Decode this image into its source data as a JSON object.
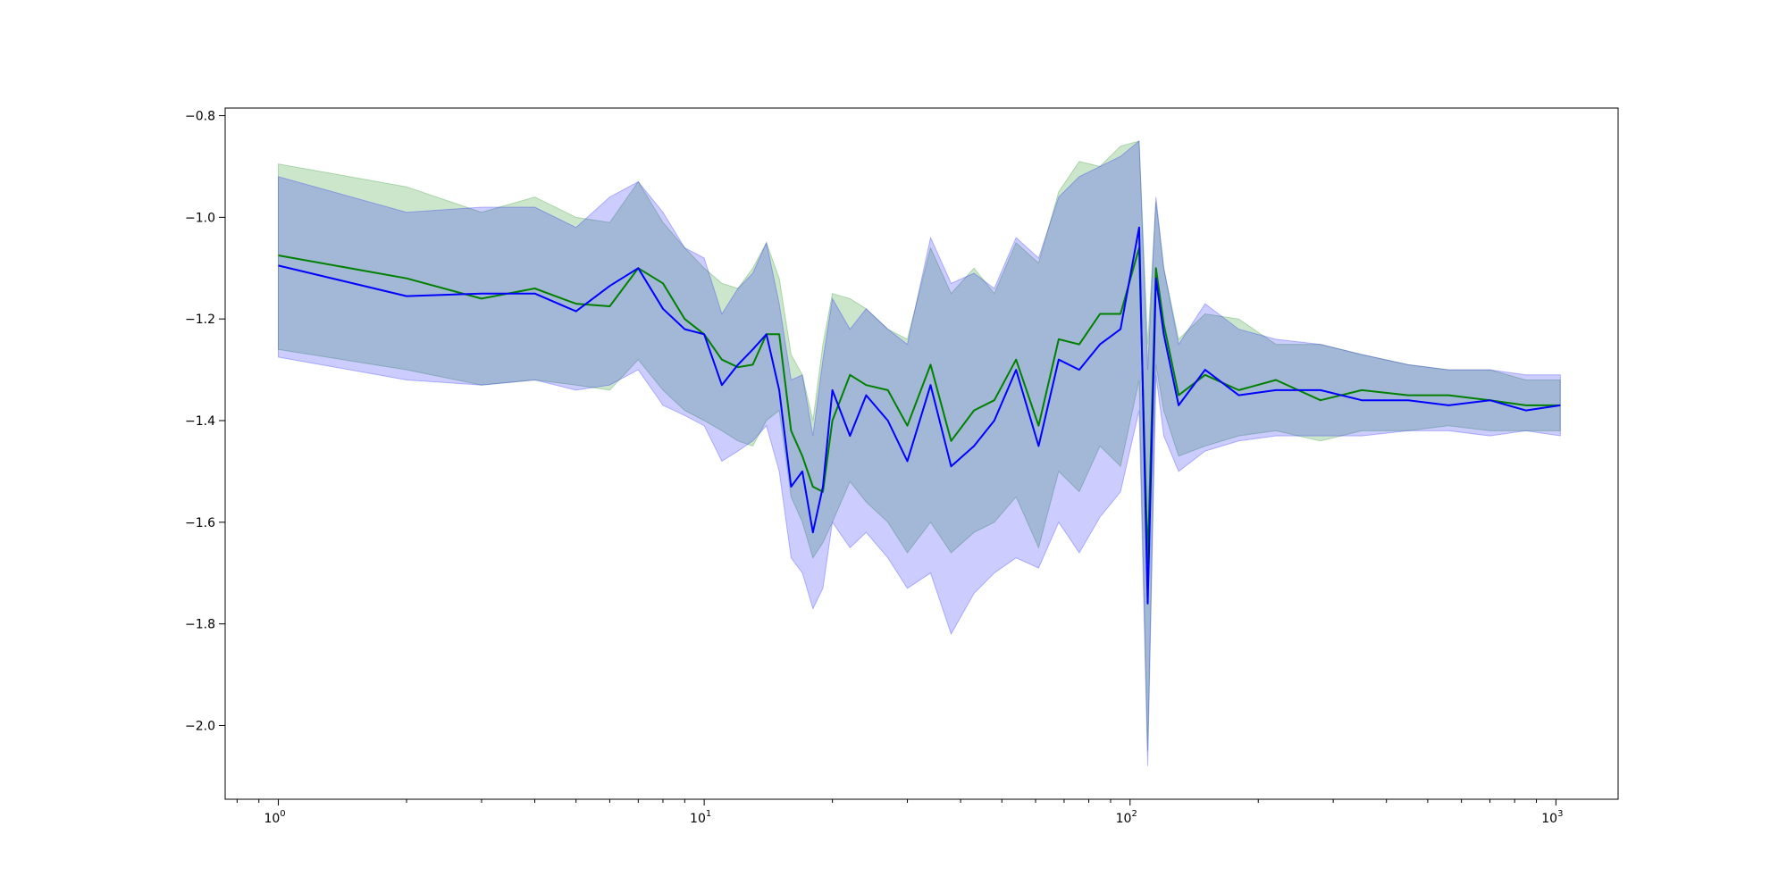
{
  "chart_data": {
    "type": "line",
    "title": "",
    "xlabel": "",
    "ylabel": "",
    "x_scale": "log",
    "xlim": [
      0.75,
      1400
    ],
    "ylim": [
      -2.145,
      -0.785
    ],
    "grid": false,
    "legend": "none",
    "x_ticks": [
      {
        "value": 1,
        "base": "10",
        "exp": "0"
      },
      {
        "value": 10,
        "base": "10",
        "exp": "1"
      },
      {
        "value": 100,
        "base": "10",
        "exp": "2"
      },
      {
        "value": 1000,
        "base": "10",
        "exp": "3"
      }
    ],
    "y_ticks": [
      {
        "value": -0.8,
        "label": "−0.8"
      },
      {
        "value": -1.0,
        "label": "−1.0"
      },
      {
        "value": -1.2,
        "label": "−1.2"
      },
      {
        "value": -1.4,
        "label": "−1.4"
      },
      {
        "value": -1.6,
        "label": "−1.6"
      },
      {
        "value": -1.8,
        "label": "−1.8"
      },
      {
        "value": -2.0,
        "label": "−2.0"
      }
    ],
    "series": [
      {
        "color": "#008000",
        "band_color": "#008000",
        "band_opacity": 0.2,
        "x": [
          1,
          2,
          3,
          4,
          5,
          6,
          7,
          8,
          9,
          10,
          11,
          12,
          13,
          14,
          15,
          16,
          17,
          18,
          19,
          20,
          22,
          24,
          27,
          30,
          34,
          38,
          43,
          48,
          54,
          61,
          68,
          76,
          85,
          95,
          105,
          110,
          115,
          120,
          130,
          150,
          180,
          220,
          280,
          350,
          450,
          560,
          700,
          850,
          1024
        ],
        "y": [
          -1.075,
          -1.12,
          -1.16,
          -1.14,
          -1.17,
          -1.175,
          -1.1,
          -1.13,
          -1.2,
          -1.23,
          -1.28,
          -1.295,
          -1.29,
          -1.23,
          -1.23,
          -1.42,
          -1.47,
          -1.53,
          -1.54,
          -1.4,
          -1.31,
          -1.33,
          -1.34,
          -1.41,
          -1.29,
          -1.44,
          -1.38,
          -1.36,
          -1.28,
          -1.41,
          -1.24,
          -1.25,
          -1.19,
          -1.19,
          -1.06,
          -1.68,
          -1.1,
          -1.21,
          -1.35,
          -1.31,
          -1.34,
          -1.32,
          -1.36,
          -1.34,
          -1.35,
          -1.35,
          -1.36,
          -1.37,
          -1.37
        ],
        "upper": [
          -0.895,
          -0.94,
          -0.99,
          -0.96,
          -1.0,
          -1.01,
          -0.93,
          -1.01,
          -1.06,
          -1.1,
          -1.13,
          -1.14,
          -1.1,
          -1.05,
          -1.12,
          -1.27,
          -1.31,
          -1.4,
          -1.25,
          -1.15,
          -1.16,
          -1.18,
          -1.22,
          -1.24,
          -1.06,
          -1.15,
          -1.1,
          -1.15,
          -1.05,
          -1.09,
          -0.95,
          -0.89,
          -0.9,
          -0.86,
          -0.85,
          -1.25,
          -0.97,
          -1.1,
          -1.24,
          -1.19,
          -1.2,
          -1.25,
          -1.25,
          -1.27,
          -1.29,
          -1.3,
          -1.3,
          -1.32,
          -1.32
        ],
        "lower": [
          -1.26,
          -1.3,
          -1.33,
          -1.32,
          -1.33,
          -1.34,
          -1.28,
          -1.34,
          -1.38,
          -1.4,
          -1.42,
          -1.44,
          -1.45,
          -1.4,
          -1.38,
          -1.55,
          -1.6,
          -1.67,
          -1.64,
          -1.6,
          -1.52,
          -1.56,
          -1.6,
          -1.66,
          -1.6,
          -1.66,
          -1.62,
          -1.6,
          -1.55,
          -1.65,
          -1.5,
          -1.54,
          -1.45,
          -1.49,
          -1.32,
          -2.05,
          -1.29,
          -1.38,
          -1.47,
          -1.45,
          -1.43,
          -1.42,
          -1.44,
          -1.42,
          -1.42,
          -1.41,
          -1.42,
          -1.42,
          -1.42
        ]
      },
      {
        "color": "#0000ff",
        "band_color": "#0000ff",
        "band_opacity": 0.2,
        "x": [
          1,
          2,
          3,
          4,
          5,
          6,
          7,
          8,
          9,
          10,
          11,
          12,
          13,
          14,
          15,
          16,
          17,
          18,
          19,
          20,
          22,
          24,
          27,
          30,
          34,
          38,
          43,
          48,
          54,
          61,
          68,
          76,
          85,
          95,
          105,
          110,
          115,
          120,
          130,
          150,
          180,
          220,
          280,
          350,
          450,
          560,
          700,
          850,
          1024
        ],
        "y": [
          -1.095,
          -1.155,
          -1.15,
          -1.15,
          -1.185,
          -1.135,
          -1.1,
          -1.18,
          -1.22,
          -1.23,
          -1.33,
          -1.29,
          -1.26,
          -1.23,
          -1.34,
          -1.53,
          -1.5,
          -1.62,
          -1.53,
          -1.34,
          -1.43,
          -1.35,
          -1.4,
          -1.48,
          -1.33,
          -1.49,
          -1.45,
          -1.4,
          -1.3,
          -1.45,
          -1.28,
          -1.3,
          -1.25,
          -1.22,
          -1.02,
          -1.76,
          -1.12,
          -1.23,
          -1.37,
          -1.3,
          -1.35,
          -1.34,
          -1.34,
          -1.36,
          -1.36,
          -1.37,
          -1.36,
          -1.38,
          -1.37
        ],
        "upper": [
          -0.92,
          -0.99,
          -0.98,
          -0.98,
          -1.02,
          -0.96,
          -0.93,
          -0.99,
          -1.06,
          -1.08,
          -1.19,
          -1.14,
          -1.11,
          -1.05,
          -1.17,
          -1.32,
          -1.31,
          -1.43,
          -1.28,
          -1.16,
          -1.22,
          -1.18,
          -1.22,
          -1.25,
          -1.04,
          -1.13,
          -1.11,
          -1.14,
          -1.04,
          -1.08,
          -0.96,
          -0.92,
          -0.9,
          -0.88,
          -0.85,
          -1.3,
          -0.96,
          -1.1,
          -1.25,
          -1.17,
          -1.22,
          -1.24,
          -1.25,
          -1.27,
          -1.29,
          -1.3,
          -1.3,
          -1.31,
          -1.31
        ],
        "lower": [
          -1.275,
          -1.32,
          -1.33,
          -1.32,
          -1.34,
          -1.33,
          -1.3,
          -1.37,
          -1.39,
          -1.41,
          -1.48,
          -1.46,
          -1.44,
          -1.41,
          -1.5,
          -1.67,
          -1.7,
          -1.77,
          -1.73,
          -1.6,
          -1.65,
          -1.62,
          -1.67,
          -1.73,
          -1.7,
          -1.82,
          -1.74,
          -1.7,
          -1.67,
          -1.69,
          -1.6,
          -1.66,
          -1.59,
          -1.54,
          -1.38,
          -2.08,
          -1.31,
          -1.43,
          -1.5,
          -1.46,
          -1.44,
          -1.43,
          -1.43,
          -1.43,
          -1.42,
          -1.42,
          -1.43,
          -1.42,
          -1.43
        ]
      }
    ]
  }
}
